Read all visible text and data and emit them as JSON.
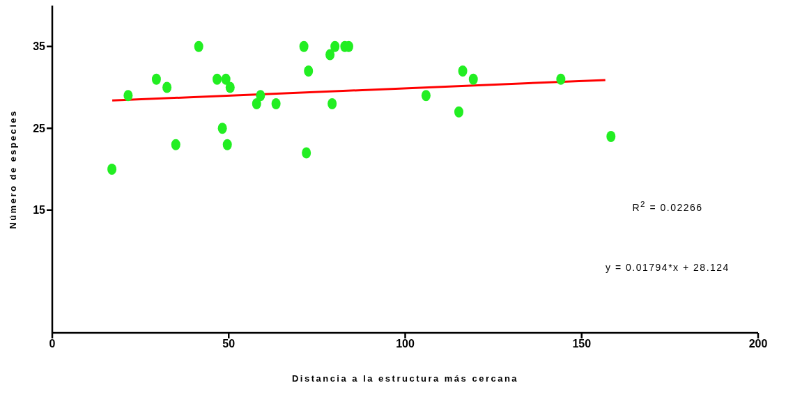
{
  "chart_data": {
    "type": "scatter",
    "xlabel": "Distancia a la estructura más cercana",
    "ylabel": "Número de especies",
    "xlim": [
      0,
      200
    ],
    "xticks": [
      0,
      50,
      100,
      150,
      200
    ],
    "ylim": [
      0,
      40
    ],
    "yticks": [
      15,
      25,
      35
    ],
    "marker": "circle",
    "series": [
      {
        "color": "#22ee22",
        "x": [
          16.9,
          21.5,
          29.5,
          32.5,
          35,
          41.5,
          46.7,
          48.2,
          49.2,
          50.4,
          49.6,
          57.9,
          59,
          63.4,
          71.3,
          72.6,
          72,
          78.7,
          79.3,
          80.1,
          82.9,
          84,
          105.9,
          115.2,
          116.3,
          119.3,
          144.1,
          158.3
        ],
        "values": [
          20,
          29,
          31,
          30,
          23,
          35,
          31,
          25,
          31,
          30,
          23,
          28,
          29,
          28,
          35,
          32,
          22,
          34,
          28,
          35,
          35,
          35,
          29,
          27,
          32,
          31,
          31,
          24
        ]
      },
      {
        "type": "line",
        "color": "#ff0000",
        "marker": "none",
        "x": [
          17,
          156.7
        ],
        "values": [
          28.4,
          30.9
        ]
      }
    ],
    "annotations": [
      "R$^{2}$ = 0.02266",
      "y = 0.01794*x + 28.124"
    ]
  }
}
